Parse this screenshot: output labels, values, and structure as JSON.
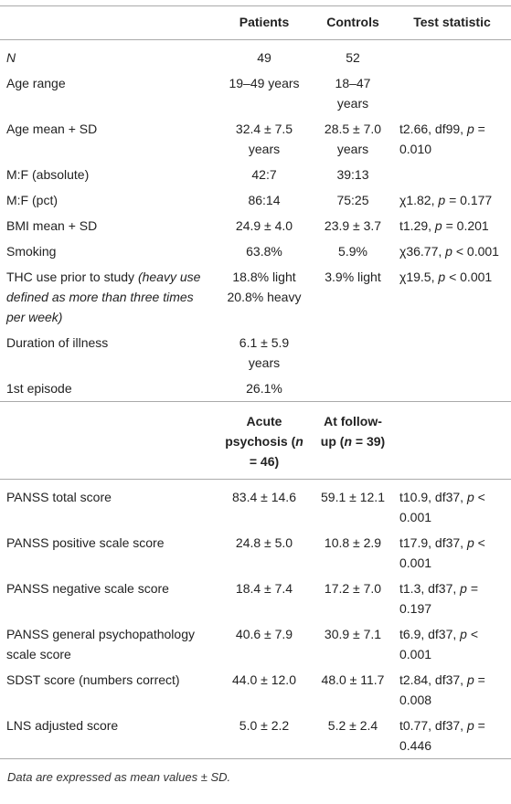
{
  "table": {
    "header": [
      "Patients",
      "Controls",
      "Test statistic"
    ],
    "rows": [
      [
        [
          {
            "italic": "N"
          }
        ],
        "49",
        "52",
        null
      ],
      [
        "Age range",
        "19–49 years",
        "18–47 years",
        null
      ],
      [
        "Age mean + SD",
        "32.4 ± 7.5 years",
        "28.5 ± 7.0 years",
        [
          "t2.66, df99, ",
          {
            "italic": "p"
          },
          " = 0.010"
        ]
      ],
      [
        "M:F (absolute)",
        "42:7",
        "39:13",
        null
      ],
      [
        "M:F (pct)",
        "86:14",
        "75:25",
        [
          "χ1.82, ",
          {
            "italic": "p"
          },
          " = 0.177"
        ]
      ],
      [
        "BMI mean + SD",
        "24.9 ± 4.0",
        "23.9 ± 3.7",
        [
          "t1.29, ",
          {
            "italic": "p"
          },
          " = 0.201"
        ]
      ],
      [
        "Smoking",
        "63.8%",
        "5.9%",
        [
          "χ36.77, ",
          {
            "italic": "p"
          },
          " < 0.001"
        ]
      ],
      [
        [
          "THC use prior to study ",
          {
            "italic": "(heavy use defined as more than three times per week)"
          }
        ],
        "18.8% light\n20.8% heavy",
        "3.9% light",
        [
          "χ19.5, ",
          {
            "italic": "p"
          },
          " < 0.001"
        ]
      ],
      [
        "Duration of illness",
        "6.1 ± 5.9 years",
        null,
        null
      ],
      [
        "1st episode",
        "26.1%",
        null,
        null
      ]
    ],
    "header2": [
      [
        "Acute psychosis (",
        {
          "italic": "n"
        },
        " = 46)"
      ],
      [
        "At follow-up (",
        {
          "italic": "n"
        },
        " = 39)"
      ]
    ],
    "rows2": [
      [
        "PANSS total score",
        "83.4 ± 14.6",
        "59.1 ± 12.1",
        [
          "t10.9, df37, ",
          {
            "italic": "p"
          },
          " < 0.001"
        ]
      ],
      [
        "PANSS positive scale score",
        "24.8 ± 5.0",
        "10.8 ± 2.9",
        [
          "t17.9, df37, ",
          {
            "italic": "p"
          },
          " < 0.001"
        ]
      ],
      [
        "PANSS negative scale score",
        "18.4 ± 7.4",
        "17.2 ± 7.0",
        [
          "t1.3, df37, ",
          {
            "italic": "p"
          },
          " = 0.197"
        ]
      ],
      [
        "PANSS general psychopathology scale score",
        "40.6 ± 7.9",
        "30.9 ± 7.1",
        [
          "t6.9, df37, ",
          {
            "italic": "p"
          },
          " < 0.001"
        ]
      ],
      [
        "SDST score (numbers correct)",
        "44.0 ± 12.0",
        "48.0 ± 11.7",
        [
          "t2.84, df37, ",
          {
            "italic": "p"
          },
          " = 0.008"
        ]
      ],
      [
        "LNS adjusted score",
        "5.0 ± 2.2",
        "5.2 ± 2.4",
        [
          "t0.77, df37, ",
          {
            "italic": "p"
          },
          " = 0.446"
        ]
      ]
    ]
  },
  "footnote": "Data are expressed as mean values ± SD."
}
